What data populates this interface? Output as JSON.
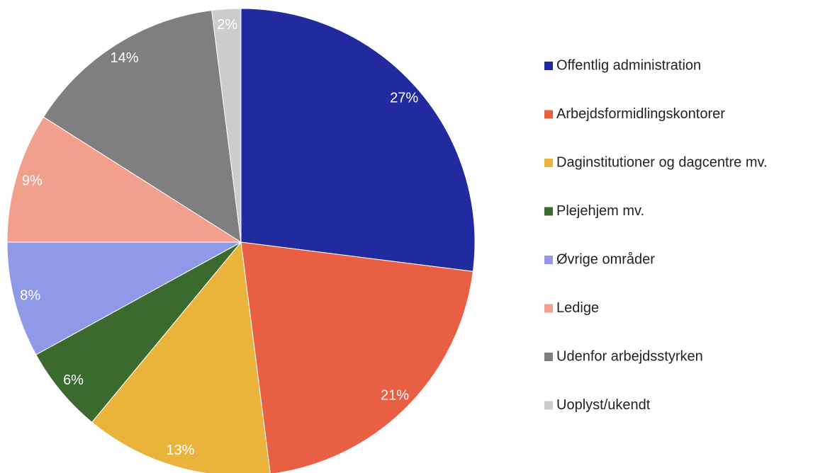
{
  "chart_data": {
    "type": "pie",
    "categories": [
      "Offentlig administration",
      "Arbejdsformidlingskontorer",
      "Daginstitutioner og dagcentre mv.",
      "Plejehjem mv.",
      "Øvrige områder",
      "Ledige",
      "Udenfor arbejdsstyrken",
      "Uoplyst/ukendt"
    ],
    "values": [
      27,
      21,
      13,
      6,
      8,
      9,
      14,
      2
    ],
    "value_labels": [
      "27%",
      "21%",
      "13%",
      "6%",
      "8%",
      "9%",
      "14%",
      "2%"
    ],
    "colors": [
      "#222a9f",
      "#e95f43",
      "#eab43c",
      "#3b6a2e",
      "#9099e8",
      "#f2a08e",
      "#7f7f7f",
      "#cccccc"
    ],
    "legend": "right"
  }
}
